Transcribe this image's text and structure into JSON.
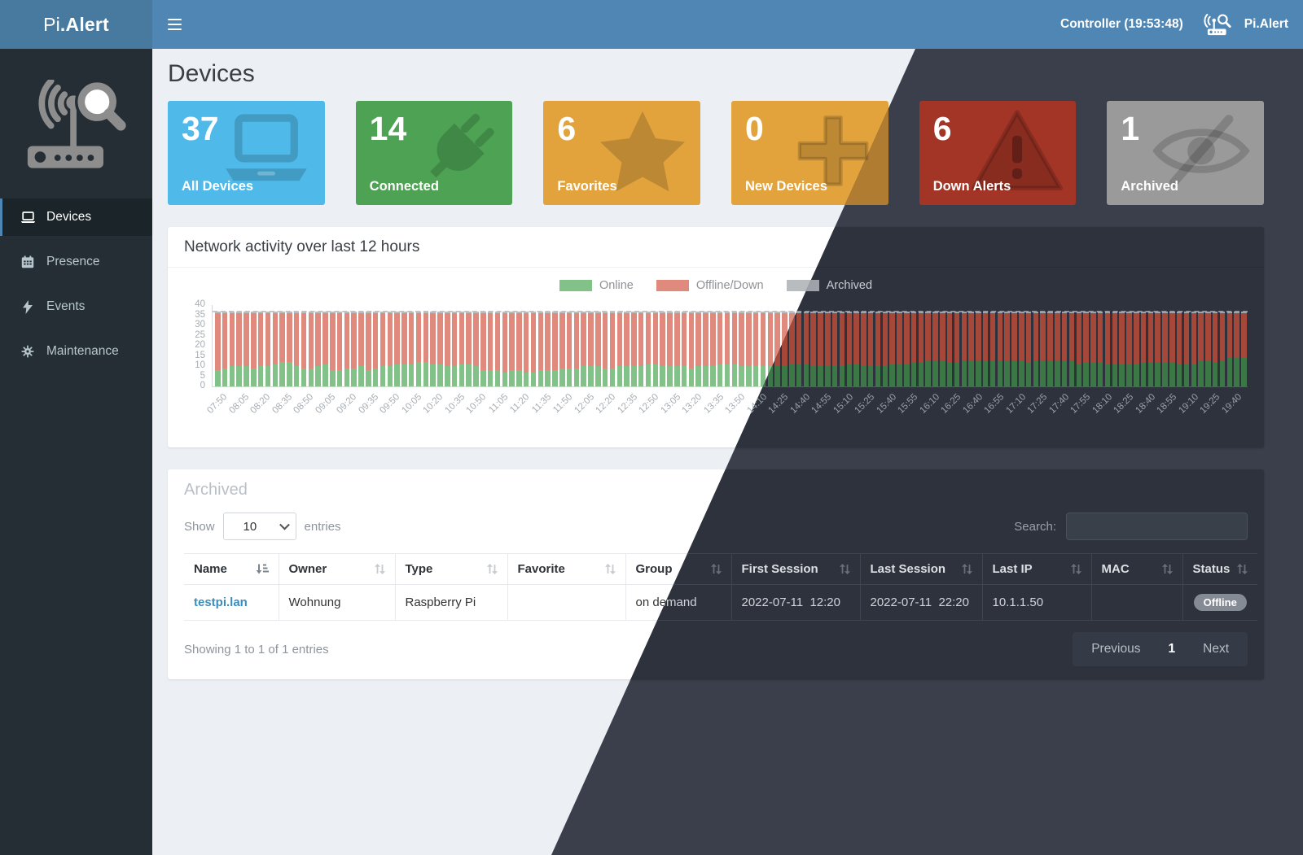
{
  "header": {
    "brand": {
      "prefix": "Pi",
      "suffix": ".Alert"
    },
    "controller_label": "Controller (19:53:48)",
    "app_label": "Pi.Alert"
  },
  "sidebar": {
    "items": [
      {
        "label": "Devices",
        "icon": "laptop-icon",
        "active": true
      },
      {
        "label": "Presence",
        "icon": "calendar-icon",
        "active": false
      },
      {
        "label": "Events",
        "icon": "bolt-icon",
        "active": false
      },
      {
        "label": "Maintenance",
        "icon": "gear-icon",
        "active": false
      }
    ]
  },
  "page": {
    "title": "Devices"
  },
  "summary_cards": [
    {
      "value": "37",
      "label": "All Devices",
      "icon": "laptop-icon",
      "color_light": "#4fb9e9",
      "color_dark": "#3e90b5"
    },
    {
      "value": "14",
      "label": "Connected",
      "icon": "plug-icon",
      "color_light": "#4da254",
      "color_dark": "#3a7a40"
    },
    {
      "value": "6",
      "label": "Favorites",
      "icon": "star-icon",
      "color_light": "#e2a33d",
      "color_dark": "#b07c32"
    },
    {
      "value": "0",
      "label": "New Devices",
      "icon": "plus-icon",
      "color_light": "#e2a33d",
      "color_dark": "#b07c32"
    },
    {
      "value": "6",
      "label": "Down Alerts",
      "icon": "warning-triangle-icon",
      "color_light": "#cf4432",
      "color_dark": "#a33527"
    },
    {
      "value": "1",
      "label": "Archived",
      "icon": "eye-slash-icon",
      "color_light": "#c2c2c2",
      "color_dark": "#9a9a9a"
    }
  ],
  "chart_data": {
    "type": "bar",
    "stacked": true,
    "title": "Network activity over last 12 hours",
    "legend": [
      "Online",
      "Offline/Down",
      "Archived"
    ],
    "legend_position": "top-center",
    "ylim": [
      0,
      40
    ],
    "y_ticks": [
      40,
      35,
      30,
      25,
      20,
      15,
      10,
      5,
      0
    ],
    "total_devices": 37,
    "archived_per_bar": 1,
    "bar_interval_minutes": 5,
    "label_every_n_bars": 3,
    "colors_light": {
      "online": "#82c187",
      "offline": "#e08a7e",
      "archived": "#b9bcbf"
    },
    "colors_dark": {
      "online": "#3c7846",
      "offline": "#a5483a",
      "archived": "#9fa3a9"
    },
    "x_labels": [
      "07:50",
      "08:05",
      "08:20",
      "08:35",
      "08:50",
      "09:05",
      "09:20",
      "09:35",
      "09:50",
      "10:05",
      "10:20",
      "10:35",
      "10:50",
      "11:05",
      "11:20",
      "11:35",
      "11:50",
      "12:05",
      "12:20",
      "12:35",
      "12:50",
      "13:05",
      "13:20",
      "13:35",
      "13:50",
      "14:10",
      "14:25",
      "14:40",
      "14:55",
      "15:10",
      "15:25",
      "15:40",
      "15:55",
      "16:10",
      "16:25",
      "16:40",
      "16:55",
      "17:10",
      "17:25",
      "17:40",
      "17:55",
      "18:10",
      "18:25",
      "18:40",
      "18:55",
      "19:10",
      "19:25",
      "19:40"
    ],
    "online": [
      8,
      9,
      10,
      10,
      10,
      9,
      10,
      10,
      11,
      12,
      12,
      10,
      9,
      9,
      10,
      11,
      8,
      8,
      9,
      9,
      10,
      8,
      9,
      10,
      10,
      11,
      11,
      11,
      12,
      12,
      11,
      11,
      10,
      10,
      11,
      11,
      10,
      8,
      8,
      8,
      7,
      8,
      8,
      7,
      7,
      8,
      8,
      8,
      9,
      9,
      9,
      10,
      10,
      10,
      9,
      9,
      10,
      10,
      10,
      10,
      11,
      11,
      10,
      10,
      10,
      10,
      9,
      10,
      10,
      10,
      11,
      11,
      11,
      10,
      10,
      10,
      10,
      10,
      10,
      10,
      11,
      11,
      11,
      10,
      10,
      10,
      10,
      10,
      11,
      11,
      10,
      10,
      10,
      10,
      11,
      11,
      11,
      12,
      12,
      13,
      13,
      13,
      12,
      12,
      13,
      13,
      13,
      13,
      13,
      13,
      13,
      13,
      13,
      12,
      13,
      13,
      13,
      13,
      13,
      13,
      11,
      12,
      12,
      12,
      11,
      11,
      11,
      11,
      11,
      12,
      12,
      12,
      12,
      12,
      11,
      11,
      11,
      13,
      13,
      12,
      13,
      14,
      14,
      14
    ],
    "note_offline_series": "offline = total_devices - archived_per_bar - online for each bar"
  },
  "archived_section": {
    "title": "Archived",
    "show_label": "Show",
    "entries_value": "10",
    "entries_label": "entries",
    "search_label": "Search:",
    "search_value": "",
    "columns": [
      {
        "label": "Name"
      },
      {
        "label": "Owner"
      },
      {
        "label": "Type"
      },
      {
        "label": "Favorite"
      },
      {
        "label": "Group"
      },
      {
        "label": "First Session"
      },
      {
        "label": "Last Session"
      },
      {
        "label": "Last IP"
      },
      {
        "label": "MAC"
      },
      {
        "label": "Status"
      }
    ],
    "rows": [
      {
        "name": "testpi.lan",
        "owner": "Wohnung",
        "type": "Raspberry Pi",
        "favorite": "",
        "group": "on demand",
        "first_session": "2022-07-11  12:20",
        "last_session": "2022-07-11  22:20",
        "last_ip": "10.1.1.50",
        "mac": "",
        "status": "Offline"
      }
    ],
    "info": "Showing 1 to 1 of 1 entries",
    "pagination": {
      "previous": "Previous",
      "page": "1",
      "next": "Next"
    }
  }
}
